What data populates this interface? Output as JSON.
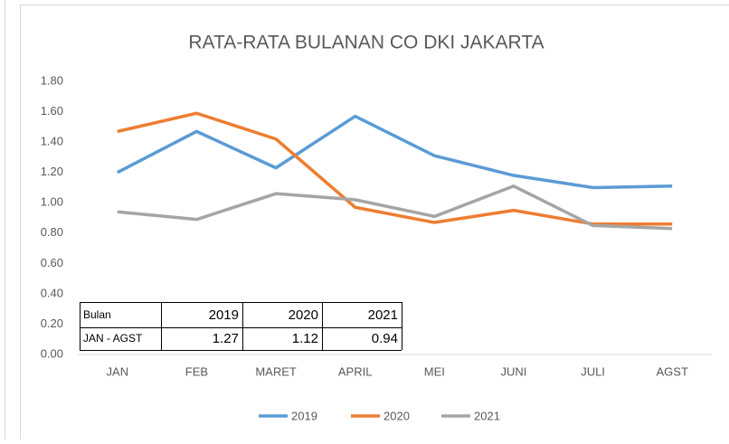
{
  "chart_data": {
    "type": "line",
    "title": "RATA-RATA BULANAN CO DKI JAKARTA",
    "categories": [
      "JAN",
      "FEB",
      "MARET",
      "APRIL",
      "MEI",
      "JUNI",
      "JULI",
      "AGST"
    ],
    "series": [
      {
        "name": "2019",
        "color": "#5b9bd5",
        "values": [
          1.2,
          1.47,
          1.23,
          1.57,
          1.31,
          1.18,
          1.1,
          1.11
        ]
      },
      {
        "name": "2020",
        "color": "#ed7d31",
        "values": [
          1.47,
          1.59,
          1.42,
          0.97,
          0.87,
          0.95,
          0.86,
          0.86
        ]
      },
      {
        "name": "2021",
        "color": "#a5a5a5",
        "values": [
          0.94,
          0.89,
          1.06,
          1.02,
          0.91,
          1.11,
          0.85,
          0.83
        ]
      }
    ],
    "ylim": [
      0,
      1.8
    ],
    "yticks": [
      {
        "value": 0,
        "label": "0.00"
      },
      {
        "value": 0.2,
        "label": "0.20"
      },
      {
        "value": 0.4,
        "label": "0.40"
      },
      {
        "value": 0.6,
        "label": "0.60"
      },
      {
        "value": 0.8,
        "label": "0.80"
      },
      {
        "value": 1,
        "label": "1.00"
      },
      {
        "value": 1.2,
        "label": "1.20"
      },
      {
        "value": 1.4,
        "label": "1.40"
      },
      {
        "value": 1.6,
        "label": "1.60"
      },
      {
        "value": 1.8,
        "label": "1.80"
      }
    ],
    "grid": false,
    "legend": "bottom",
    "data_table": {
      "row_labels": [
        "Bulan",
        "JAN - AGST"
      ],
      "values": [
        1.27,
        1.12,
        0.94
      ]
    }
  }
}
